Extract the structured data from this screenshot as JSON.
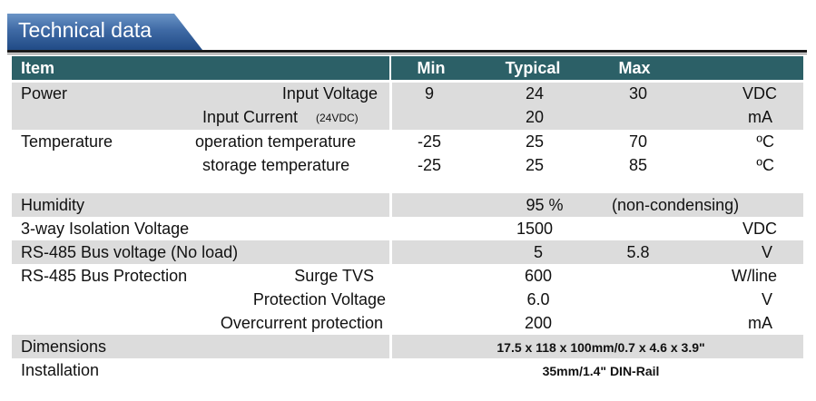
{
  "title": "Technical data",
  "headers": {
    "item": "Item",
    "min": "Min",
    "typical": "Typical",
    "max": "Max"
  },
  "rows": {
    "power": {
      "label": "Power",
      "input_voltage": {
        "name": "Input Voltage",
        "min": "9",
        "typical": "24",
        "max": "30",
        "unit": "VDC"
      },
      "input_current": {
        "name": "Input Current",
        "note": "(24VDC)",
        "typical": "20",
        "unit": "mA"
      }
    },
    "temperature": {
      "label": "Temperature",
      "operation": {
        "name": "operation temperature",
        "min": "-25",
        "typical": "25",
        "max": "70",
        "unit": "ºC"
      },
      "storage": {
        "name": "storage temperature",
        "min": "-25",
        "typical": "25",
        "max": "85",
        "unit": "ºC"
      }
    },
    "humidity": {
      "label": "Humidity",
      "typical": "95 %",
      "note": "(non-condensing)"
    },
    "isolation": {
      "label": "3-way Isolation Voltage",
      "typical": "1500",
      "unit": "VDC"
    },
    "bus_voltage": {
      "label": "RS-485 Bus voltage (No load)",
      "typical": "5",
      "max": "5.8",
      "unit": "V"
    },
    "bus_protection": {
      "label": "RS-485 Bus Protection",
      "surge": {
        "name": "Surge TVS",
        "typical": "600",
        "unit": "W/line"
      },
      "protection_voltage": {
        "name": "Protection Voltage",
        "typical": "6.0",
        "unit": "V"
      },
      "overcurrent": {
        "name": "Overcurrent protection",
        "typical": "200",
        "unit": "mA"
      }
    },
    "dimensions": {
      "label": "Dimensions",
      "value": "17.5 x 118 x 100mm/0.7 x 4.6 x 3.9\""
    },
    "installation": {
      "label": "Installation",
      "value": "35mm/1.4\" DIN-Rail"
    }
  }
}
